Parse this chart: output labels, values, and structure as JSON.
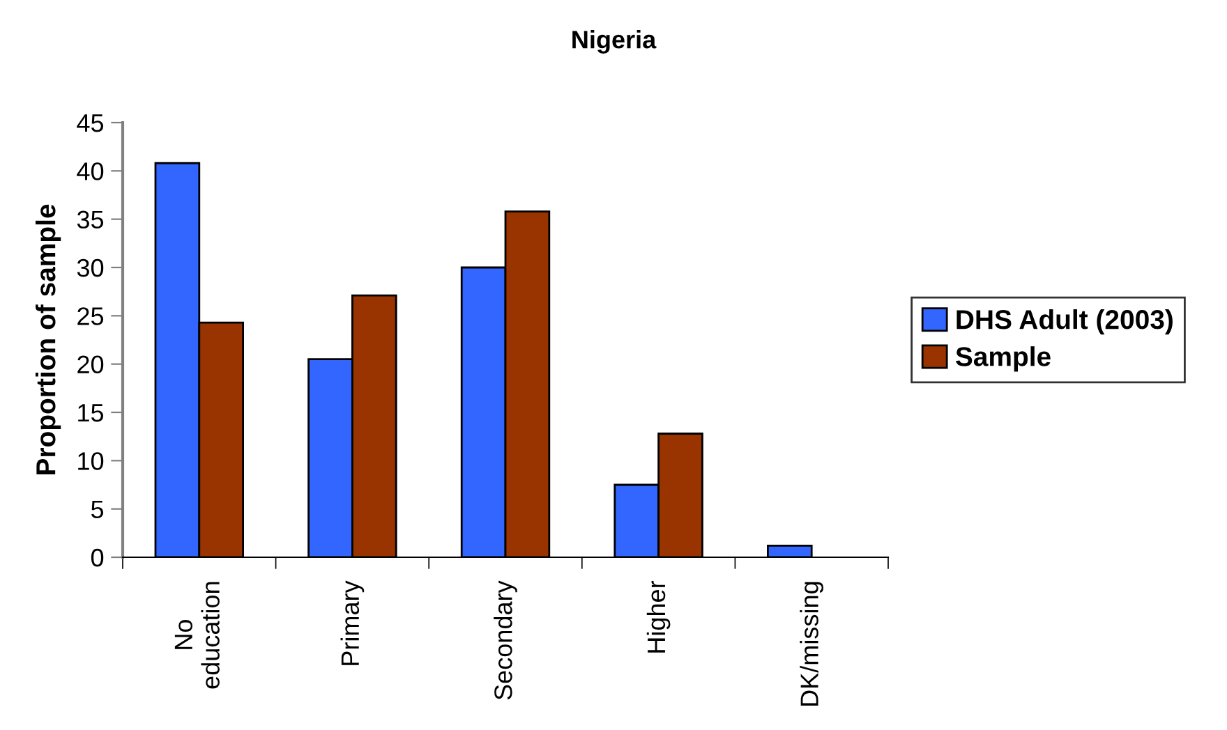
{
  "chart_data": {
    "type": "bar",
    "title": "Nigeria",
    "ylabel": "Proportion of sample",
    "categories": [
      "No\neducation",
      "Primary",
      "Secondary",
      "Higher",
      "DK/missing"
    ],
    "series": [
      {
        "name": "DHS Adult (2003)",
        "color": "#3366ff",
        "values": [
          40.8,
          20.5,
          30.0,
          7.5,
          1.2
        ]
      },
      {
        "name": "Sample",
        "color": "#993300",
        "values": [
          24.3,
          27.1,
          35.8,
          12.8,
          null
        ]
      }
    ],
    "ylim": [
      0,
      45
    ],
    "yticks": [
      0,
      5,
      10,
      15,
      20,
      25,
      30,
      35,
      40,
      45
    ],
    "legend": "right"
  }
}
